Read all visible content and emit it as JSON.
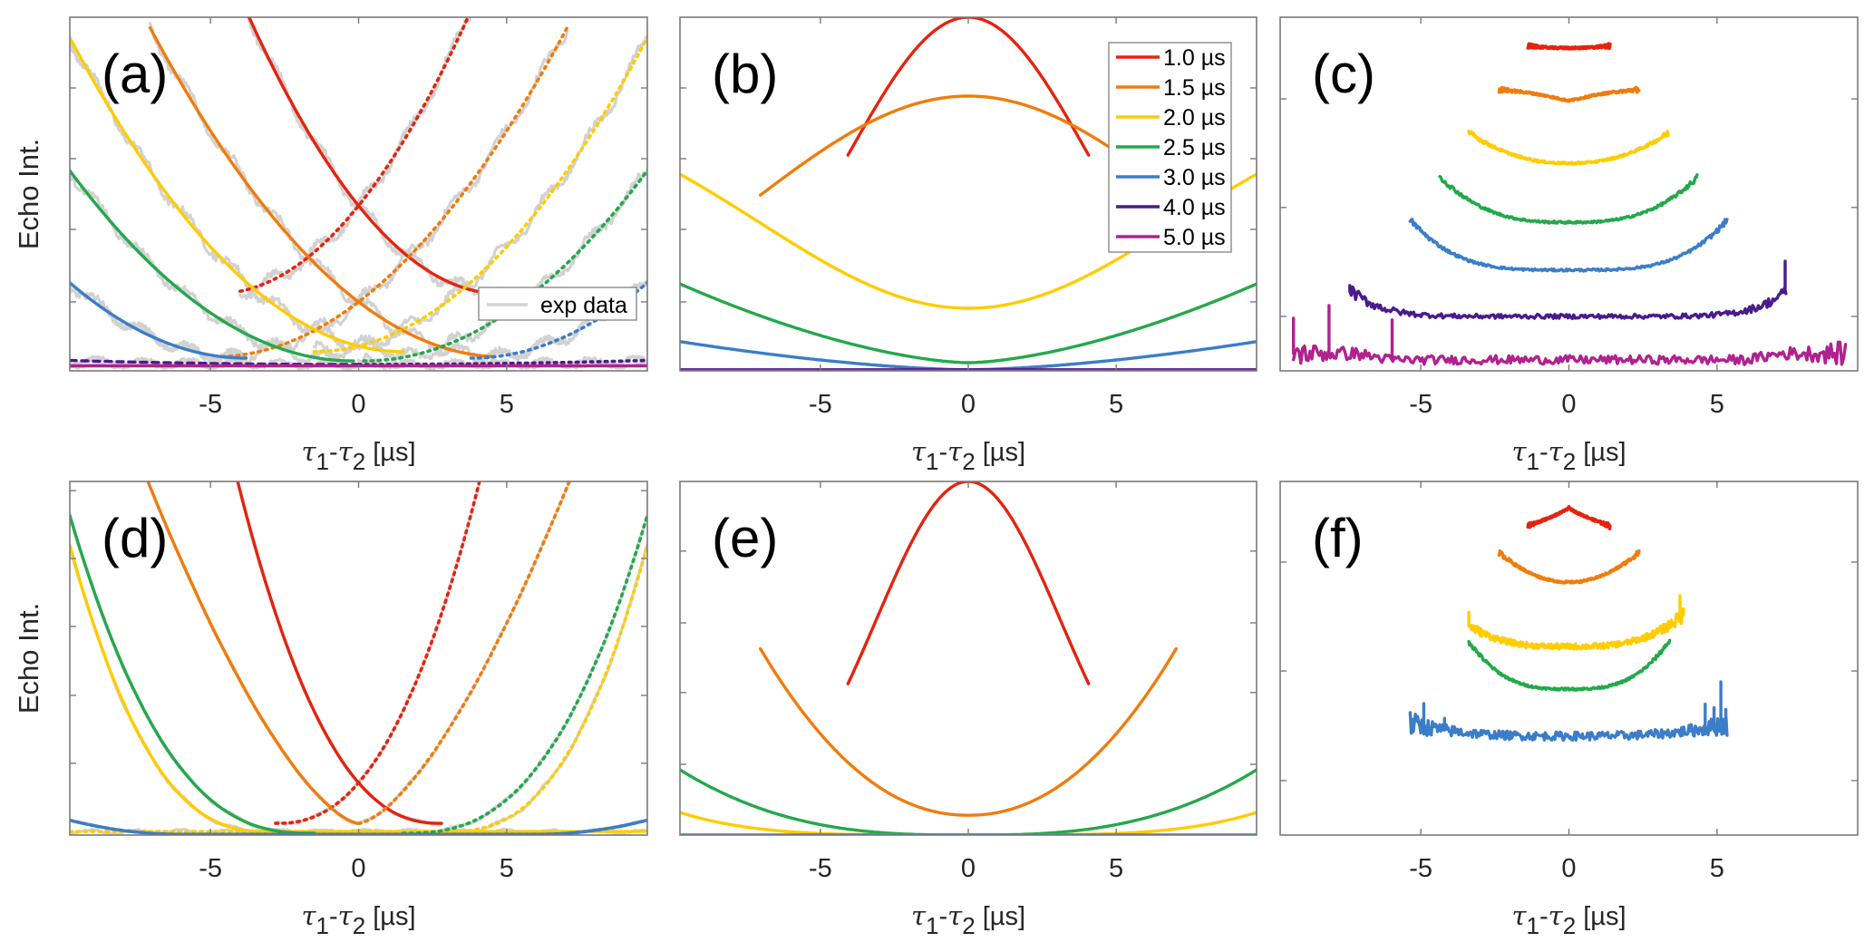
{
  "chart_data": [
    {
      "id": "a",
      "type": "line",
      "panel_label": "(a)",
      "xlabel": {
        "tau": "τ",
        "sub1": "1",
        "dash": "-",
        "sub2": "2",
        "unit": " [µs]"
      },
      "ylabel": "Echo Int.",
      "xlim": [
        -9.75,
        9.75
      ],
      "ylim": [
        0,
        1
      ],
      "xticks": [
        -5,
        0,
        5
      ],
      "xtick_labels": [
        "-5",
        "0",
        "5"
      ],
      "yticks": [
        0.195,
        0.4,
        0.6,
        0.8
      ],
      "show_ytick_labels": false,
      "legend": {
        "placement": "bottom-right",
        "entries": [
          {
            "label": "exp data",
            "color": "#d3d3d3"
          }
        ]
      },
      "series": [
        {
          "name": "1.0 µs fit",
          "color": "#e5230e",
          "style": "solid",
          "model": "quad",
          "p": [
            0.01088,
            -0.104,
            0.467
          ],
          "xr": [
            -4.03,
            4.0
          ],
          "mirror": true,
          "exp_noise": 0.022
        },
        {
          "name": "1.5 µs fit",
          "color": "#f07c0c",
          "style": "solid",
          "model": "quad",
          "p": [
            0.006564,
            -0.0639,
            0.195
          ],
          "xr": [
            -7.04,
            4.6
          ],
          "mirror": true,
          "exp_noise": 0.022
        },
        {
          "name": "2.0 µs fit",
          "color": "#ffcc00",
          "style": "solid",
          "model": "quad",
          "p": [
            0.007015,
            -0.02105,
            0.07
          ],
          "xr": [
            -9.75,
            1.5
          ],
          "mirror": true,
          "exp_noise": 0.022
        },
        {
          "name": "2.5 µs fit",
          "color": "#24a84b",
          "style": "solid",
          "model": "quad",
          "p": [
            0.0059,
            0.00236,
            0.02824
          ],
          "xr": [
            -9.75,
            -0.17
          ],
          "mirror": true,
          "exp_noise": 0.02
        },
        {
          "name": "3.0 µs fit",
          "color": "#3b7dc8",
          "style": "solid",
          "model": "quad",
          "p": [
            0.00602,
            0.04575,
            0.1229
          ],
          "xr": [
            -9.75,
            -3.8
          ],
          "mirror": true,
          "exp_noise": 0.02
        },
        {
          "name": "4.0 µs fit",
          "color": "#4a1b8c",
          "style": "dashed",
          "model": "quad",
          "p": [
            0.00012,
            0.0,
            0.018
          ],
          "xr": [
            -9.75,
            0
          ],
          "mirror": true,
          "exp_noise": 0.012
        },
        {
          "name": "5.0 µs fit",
          "color": "#b0228f",
          "style": "solid",
          "model": "quad",
          "p": [
            0.0,
            0.0,
            0.014
          ],
          "xr": [
            -9.75,
            9.75
          ],
          "mirror": false,
          "exp_noise": 0.006
        }
      ]
    },
    {
      "id": "b",
      "type": "line",
      "panel_label": "(b)",
      "xlabel": {
        "tau": "τ",
        "sub1": "1",
        "dash": "-",
        "sub2": "2",
        "unit": " [µs]"
      },
      "ylabel": "",
      "xlim": [
        -9.75,
        9.75
      ],
      "ylim": [
        0,
        1
      ],
      "xticks": [
        -5,
        0,
        5
      ],
      "xtick_labels": [
        "-5",
        "0",
        "5"
      ],
      "yticks": [
        0.195,
        0.4,
        0.6,
        0.8
      ],
      "show_ytick_labels": false,
      "legend": {
        "placement": "top-right",
        "entries": [
          {
            "label": "1.0 µs",
            "color": "#e5230e"
          },
          {
            "label": "1.5 µs",
            "color": "#f07c0c"
          },
          {
            "label": "2.0 µs",
            "color": "#ffcc00"
          },
          {
            "label": "2.5 µs",
            "color": "#24a84b"
          },
          {
            "label": "3.0 µs",
            "color": "#3b7dc8"
          },
          {
            "label": "4.0 µs",
            "color": "#4a1b8c"
          },
          {
            "label": "5.0 µs",
            "color": "#b0228f"
          }
        ]
      },
      "series": [
        {
          "name": "1.0 µs",
          "color": "#e5230e",
          "model": "gauss",
          "p": [
            0.0,
            1.0,
            33.5
          ],
          "xr": [
            -4.07,
            4.07
          ]
        },
        {
          "name": "1.5 µs",
          "color": "#f07c0c",
          "model": "gauss",
          "p": [
            0.0,
            0.777,
            110.6
          ],
          "xr": [
            -7.03,
            7.03
          ]
        },
        {
          "name": "2.0 µs",
          "color": "#ffcc00",
          "model": "invgauss",
          "p": [
            0.177,
            0.618,
            100
          ],
          "xr": [
            -9.75,
            9.75
          ]
        },
        {
          "name": "2.5 µs",
          "color": "#24a84b",
          "model": "power",
          "p": [
            0.023,
            0.00596,
            1.59
          ],
          "xr": [
            -9.75,
            9.75
          ]
        },
        {
          "name": "3.0 µs",
          "color": "#3b7dc8",
          "model": "power",
          "p": [
            0.003,
            0.00218,
            1.58
          ],
          "xr": [
            -9.75,
            9.75
          ]
        },
        {
          "name": "4.0 µs",
          "color": "#4a1b8c",
          "model": "power",
          "p": [
            0.003,
            0.0,
            1
          ],
          "xr": [
            -9.75,
            9.75
          ]
        },
        {
          "name": "5.0 µs",
          "color": "#b0228f",
          "model": "power",
          "p": [
            0.0,
            0.0,
            1
          ],
          "xr": [
            -9.75,
            9.75
          ]
        }
      ]
    },
    {
      "id": "c",
      "type": "line",
      "panel_label": "(c)",
      "xlabel": {
        "tau": "τ",
        "sub1": "1",
        "dash": "-",
        "sub2": "2",
        "unit": " [µs]"
      },
      "ylabel": "",
      "xlim": [
        -9.75,
        9.75
      ],
      "ylim": [
        0,
        1
      ],
      "xticks": [
        -5,
        0,
        5
      ],
      "xtick_labels": [
        "-5",
        "0",
        "5"
      ],
      "yticks": [
        0.154,
        0.462,
        0.769
      ],
      "show_ytick_labels": false,
      "series": [
        {
          "name": "1.0 µs",
          "color": "#e5230e",
          "model": "bowl",
          "p": [
            0.913,
            0.006,
            2
          ],
          "xr": [
            -1.39,
            1.39
          ],
          "noise": 0.003
        },
        {
          "name": "1.5 µs",
          "color": "#f07c0c",
          "model": "wavy",
          "p": [
            0.764,
            0.032,
            2.36
          ],
          "xr": [
            -2.36,
            2.37
          ],
          "noise": 0.003
        },
        {
          "name": "2.0 µs",
          "color": "#ffcc00",
          "model": "bowl",
          "p": [
            0.587,
            0.087,
            2.2
          ],
          "xr": [
            -3.38,
            3.35
          ],
          "noise": 0.003
        },
        {
          "name": "2.5 µs",
          "color": "#24a84b",
          "model": "bowl",
          "p": [
            0.42,
            0.129,
            2.8
          ],
          "xr": [
            -4.36,
            4.33
          ],
          "noise": 0.003
        },
        {
          "name": "3.0 µs",
          "color": "#3b7dc8",
          "model": "bowl",
          "p": [
            0.285,
            0.143,
            3.6
          ],
          "xr": [
            -5.36,
            5.34
          ],
          "noise": 0.003
        },
        {
          "name": "4.0 µs",
          "color": "#4a1b8c",
          "model": "bowl",
          "p": [
            0.154,
            0.075,
            7
          ],
          "xr": [
            -7.4,
            7.33
          ],
          "noise": 0.006,
          "spikes": [
            [
              -7.4,
              0.241
            ],
            [
              7.3,
              0.31
            ]
          ]
        },
        {
          "name": "5.0 µs",
          "color": "#b0228f",
          "model": "flatnoisy",
          "p": [
            0.031,
            0.018,
            6.0
          ],
          "xr": [
            -9.3,
            9.34
          ],
          "noise": 0.012,
          "spikes": [
            [
              -9.3,
              0.149
            ],
            [
              -8.1,
              0.185
            ],
            [
              -5.97,
              0.144
            ]
          ]
        }
      ]
    },
    {
      "id": "d",
      "type": "line",
      "panel_label": "(d)",
      "xlabel": {
        "tau": "τ",
        "sub1": "1",
        "dash": "-",
        "sub2": "2",
        "unit": " [µs]"
      },
      "ylabel": "Echo Int.",
      "xlim": [
        -9.75,
        9.75
      ],
      "ylim": [
        0,
        1
      ],
      "xticks": [
        -5,
        0,
        5
      ],
      "xtick_labels": [
        "-5",
        "0",
        "5"
      ],
      "yticks": [
        0.203,
        0.395,
        0.59,
        0.782,
        0.974
      ],
      "show_ytick_labels": false,
      "series": [
        {
          "name": "1.0 µs fit",
          "color": "#e5230e",
          "model": "shiftpow",
          "p": [
            0.033,
            0.01,
            2.37,
            2.8
          ],
          "xr": [
            -4.3,
            2.8
          ],
          "mirror": true,
          "exp_noise": 0.004
        },
        {
          "name": "1.5 µs fit",
          "color": "#f07c0c",
          "model": "shiftpow",
          "p": [
            0.033,
            0.049,
            1.52,
            0.0
          ],
          "xr": [
            -7.3,
            0.0
          ],
          "mirror": true,
          "exp_noise": 0.004
        },
        {
          "name": "2.0 µs fit",
          "color": "#ffcc00",
          "model": "shiftpow",
          "p": [
            0.01,
            0.0061,
            2.56,
            -3.0
          ],
          "xr": [
            -9.75,
            9.75
          ],
          "mirror": true,
          "exp_noise": 0.006
        },
        {
          "name": "2.5 µs fit",
          "color": "#24a84b",
          "model": "shiftpow",
          "p": [
            0.005,
            0.00357,
            2.62,
            -1.5
          ],
          "xr": [
            -9.75,
            -1.5
          ],
          "mirror": true,
          "exp_noise": 0.005
        },
        {
          "name": "3.0 µs fit",
          "color": "#3b7dc8",
          "model": "shiftpow",
          "p": [
            0.002,
            0.00285,
            2.0,
            -6.0
          ],
          "xr": [
            -9.75,
            9.75
          ],
          "mirror": true,
          "exp_noise": 0.002
        }
      ]
    },
    {
      "id": "e",
      "type": "line",
      "panel_label": "(e)",
      "xlabel": {
        "tau": "τ",
        "sub1": "1",
        "dash": "-",
        "sub2": "2",
        "unit": " [µs]"
      },
      "ylabel": "",
      "xlim": [
        -9.75,
        9.75
      ],
      "ylim": [
        0,
        1
      ],
      "xticks": [
        -5,
        0,
        5
      ],
      "xtick_labels": [
        "-5",
        "0",
        "5"
      ],
      "yticks": [
        0.2,
        0.403,
        0.6,
        0.803
      ],
      "show_ytick_labels": false,
      "series": [
        {
          "name": "1.0 µs",
          "color": "#e5230e",
          "model": "gauss",
          "p": [
            0.0,
            1.0,
            19.5
          ],
          "xr": [
            -4.07,
            4.07
          ]
        },
        {
          "name": "1.5 µs",
          "color": "#f07c0c",
          "model": "power",
          "p": [
            0.056,
            0.00784,
            2.1
          ],
          "xr": [
            -7.03,
            7.03
          ]
        },
        {
          "name": "2.5 µs",
          "color": "#24a84b",
          "model": "power",
          "p": [
            0.0,
            0.000352,
            2.75
          ],
          "xr": [
            -9.75,
            9.75
          ]
        },
        {
          "name": "2.0 µs",
          "color": "#ffcc00",
          "model": "power",
          "p": [
            0.0,
            7.08e-06,
            4.0
          ],
          "xr": [
            -9.75,
            9.75
          ]
        },
        {
          "name": "3.0 µs",
          "color": "#3b7dc8",
          "model": "power",
          "p": [
            0.0,
            0.0,
            1
          ],
          "xr": [
            -9.75,
            9.75
          ]
        }
      ]
    },
    {
      "id": "f",
      "type": "line",
      "panel_label": "(f)",
      "xlabel": {
        "tau": "τ",
        "sub1": "1",
        "dash": "-",
        "sub2": "2",
        "unit": " [µs]"
      },
      "ylabel": "",
      "xlim": [
        -9.75,
        9.75
      ],
      "ylim": [
        0,
        1
      ],
      "xticks": [
        -5,
        0,
        5
      ],
      "xtick_labels": [
        "-5",
        "0",
        "5"
      ],
      "yticks": [
        0.154,
        0.464,
        0.772
      ],
      "show_ytick_labels": false,
      "series": [
        {
          "name": "1.0 µs",
          "color": "#e5230e",
          "model": "peak",
          "p": [
            0.926,
            -0.052,
            1.39
          ],
          "xr": [
            -1.39,
            1.39
          ],
          "noise": 0.003
        },
        {
          "name": "1.5 µs",
          "color": "#f07c0c",
          "model": "bowl",
          "p": [
            0.715,
            0.085,
            2.0
          ],
          "xr": [
            -2.36,
            2.37
          ],
          "noise": 0.003
        },
        {
          "name": "2.0 µs",
          "color": "#ffcc00",
          "model": "bowl",
          "p": [
            0.533,
            0.09,
            3.0
          ],
          "xr": [
            -3.38,
            3.87
          ],
          "noise": 0.008,
          "spikes": [
            [
              -3.38,
              0.63
            ],
            [
              3.75,
              0.677
            ],
            [
              3.87,
              0.64
            ]
          ]
        },
        {
          "name": "2.5 µs",
          "color": "#24a84b",
          "model": "bowl",
          "p": [
            0.413,
            0.138,
            3.0
          ],
          "xr": [
            -3.38,
            3.4
          ],
          "noise": 0.003
        },
        {
          "name": "3.0 µs",
          "color": "#3b7dc8",
          "model": "bowl",
          "p": [
            0.28,
            0.035,
            3.0
          ],
          "xr": [
            -5.36,
            5.34
          ],
          "noise": 0.012,
          "spikes": [
            [
              -4.9,
              0.372
            ],
            [
              -4.2,
              0.33
            ],
            [
              4.6,
              0.37
            ],
            [
              4.9,
              0.36
            ],
            [
              5.13,
              0.433
            ],
            [
              5.3,
              0.355
            ]
          ]
        }
      ]
    }
  ]
}
